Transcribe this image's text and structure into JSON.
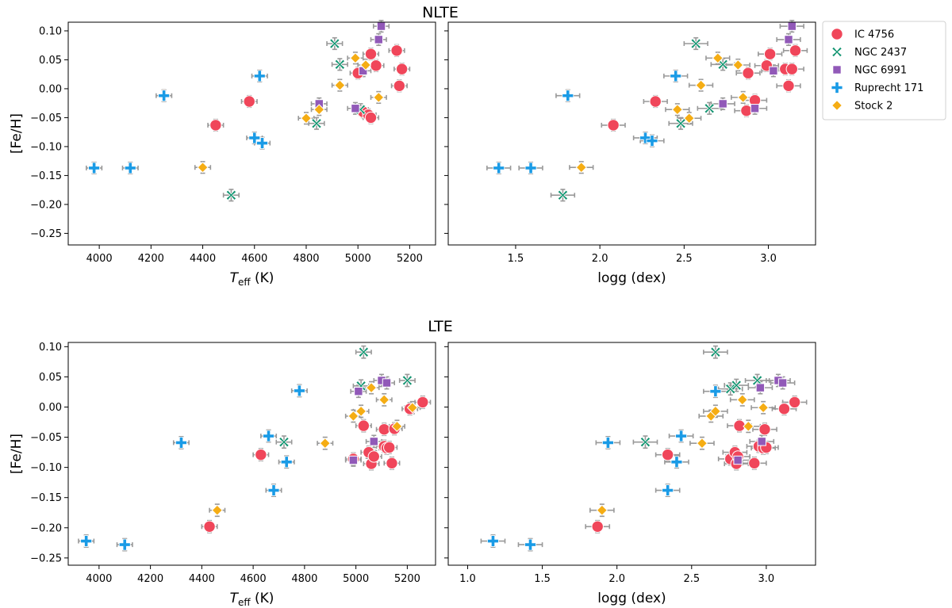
{
  "sections": [
    {
      "title": "NLTE"
    },
    {
      "title": "LTE"
    }
  ],
  "series_styles": [
    {
      "name": "IC 4756",
      "color": "#f0465a",
      "marker": "circle"
    },
    {
      "name": "NGC 2437",
      "color": "#119470",
      "marker": "x"
    },
    {
      "name": "NGC 6991",
      "color": "#9159b8",
      "marker": "square"
    },
    {
      "name": "Ruprecht 171",
      "color": "#1a9be6",
      "marker": "plus"
    },
    {
      "name": "Stock 2",
      "color": "#f5ad14",
      "marker": "diamond"
    }
  ],
  "error_bar_color": "#999999",
  "chart_data": [
    {
      "type": "scatter",
      "panel": "NLTE-teff",
      "title": "NLTE",
      "xlabel": "T_eff (K)",
      "ylabel": "[Fe/H]",
      "xlim": [
        3880,
        5300
      ],
      "ylim": [
        -0.27,
        0.115
      ],
      "xticks": [
        4000,
        4200,
        4400,
        4600,
        4800,
        5000,
        5200
      ],
      "yticks": [
        -0.25,
        -0.2,
        -0.15,
        -0.1,
        -0.05,
        0.0,
        0.05,
        0.1
      ],
      "xerr": 30,
      "yerr": 0.01,
      "series": [
        {
          "name": "IC 4756",
          "x": [
            4450,
            4580,
            5000,
            5020,
            5040,
            5050,
            5050,
            5070,
            5150,
            5160,
            5170
          ],
          "y": [
            -0.063,
            -0.022,
            0.027,
            -0.04,
            -0.045,
            -0.05,
            0.06,
            0.04,
            0.066,
            0.005,
            0.034
          ]
        },
        {
          "name": "NGC 2437",
          "x": [
            4510,
            4840,
            4910,
            4930,
            5010
          ],
          "y": [
            -0.184,
            -0.06,
            0.078,
            0.042,
            -0.036
          ]
        },
        {
          "name": "NGC 6991",
          "x": [
            4850,
            4990,
            5020,
            5080,
            5090
          ],
          "y": [
            -0.026,
            -0.034,
            0.031,
            0.085,
            0.108
          ]
        },
        {
          "name": "Ruprecht 171",
          "x": [
            3980,
            4120,
            4250,
            4600,
            4620,
            4630
          ],
          "y": [
            -0.137,
            -0.137,
            -0.012,
            -0.085,
            0.022,
            -0.094
          ]
        },
        {
          "name": "Stock 2",
          "x": [
            4400,
            4800,
            4850,
            4930,
            4990,
            5030,
            5080
          ],
          "y": [
            -0.136,
            -0.051,
            -0.036,
            0.006,
            0.053,
            0.041,
            -0.015
          ]
        }
      ]
    },
    {
      "type": "scatter",
      "panel": "NLTE-logg",
      "title": "NLTE",
      "xlabel": "logg (dex)",
      "ylabel": "",
      "xlim": [
        1.1,
        3.28
      ],
      "ylim": [
        -0.27,
        0.115
      ],
      "xticks": [
        1.5,
        2.0,
        2.5,
        3.0
      ],
      "yticks": [
        -0.25,
        -0.2,
        -0.15,
        -0.1,
        -0.05,
        0.0,
        0.05,
        0.1
      ],
      "xerr": 0.07,
      "yerr": 0.01,
      "series": [
        {
          "name": "IC 4756",
          "x": [
            2.08,
            2.33,
            2.87,
            2.92,
            2.88,
            2.99,
            3.01,
            3.1,
            3.14,
            3.16,
            3.12
          ],
          "y": [
            -0.063,
            -0.022,
            -0.038,
            -0.02,
            0.027,
            0.04,
            0.06,
            0.034,
            0.034,
            0.066,
            0.005
          ]
        },
        {
          "name": "NGC 2437",
          "x": [
            1.78,
            2.48,
            2.65,
            2.57,
            2.73
          ],
          "y": [
            -0.184,
            -0.06,
            -0.034,
            0.078,
            0.042
          ]
        },
        {
          "name": "NGC 6991",
          "x": [
            2.73,
            2.92,
            3.03,
            3.12,
            3.14
          ],
          "y": [
            -0.026,
            -0.034,
            0.031,
            0.085,
            0.108
          ]
        },
        {
          "name": "Ruprecht 171",
          "x": [
            1.4,
            1.59,
            1.81,
            2.27,
            2.31,
            2.45
          ],
          "y": [
            -0.137,
            -0.137,
            -0.012,
            -0.085,
            -0.09,
            0.022
          ]
        },
        {
          "name": "Stock 2",
          "x": [
            1.89,
            2.46,
            2.53,
            2.6,
            2.7,
            2.82,
            2.85
          ],
          "y": [
            -0.136,
            -0.036,
            -0.051,
            0.006,
            0.053,
            0.041,
            -0.015
          ]
        }
      ]
    },
    {
      "type": "scatter",
      "panel": "LTE-teff",
      "title": "LTE",
      "xlabel": "T_eff (K)",
      "ylabel": "[Fe/H]",
      "xlim": [
        3880,
        5310
      ],
      "ylim": [
        -0.262,
        0.107
      ],
      "xticks": [
        4000,
        4200,
        4400,
        4600,
        4800,
        5000,
        5200
      ],
      "yticks": [
        -0.25,
        -0.2,
        -0.15,
        -0.1,
        -0.05,
        0.0,
        0.05,
        0.1
      ],
      "xerr": 30,
      "yerr": 0.01,
      "series": [
        {
          "name": "IC 4756",
          "x": [
            4430,
            4630,
            4990,
            5030,
            5050,
            5060,
            5070,
            5110,
            5110,
            5120,
            5130,
            5140,
            5150,
            5210,
            5260
          ],
          "y": [
            -0.198,
            -0.079,
            -0.086,
            -0.031,
            -0.075,
            -0.094,
            -0.082,
            -0.065,
            -0.037,
            -0.068,
            -0.067,
            -0.093,
            -0.036,
            -0.003,
            0.008
          ]
        },
        {
          "name": "NGC 2437",
          "x": [
            4720,
            5020,
            5030,
            5200
          ],
          "y": [
            -0.058,
            0.035,
            0.091,
            0.044
          ]
        },
        {
          "name": "NGC 6991",
          "x": [
            4990,
            5010,
            5070,
            5100,
            5120
          ],
          "y": [
            -0.088,
            0.026,
            -0.057,
            0.044,
            0.04
          ]
        },
        {
          "name": "Ruprecht 171",
          "x": [
            3950,
            4100,
            4320,
            4660,
            4680,
            4730,
            4780
          ],
          "y": [
            -0.222,
            -0.228,
            -0.059,
            -0.048,
            -0.138,
            -0.091,
            0.027
          ]
        },
        {
          "name": "Stock 2",
          "x": [
            4460,
            4880,
            4990,
            5020,
            5060,
            5110,
            5160,
            5220
          ],
          "y": [
            -0.171,
            -0.06,
            -0.015,
            -0.007,
            0.032,
            0.012,
            -0.032,
            -0.001
          ]
        }
      ]
    },
    {
      "type": "scatter",
      "panel": "LTE-logg",
      "title": "LTE",
      "xlabel": "logg (dex)",
      "ylabel": "",
      "xlim": [
        0.87,
        3.33
      ],
      "ylim": [
        -0.262,
        0.107
      ],
      "xticks": [
        1.0,
        1.5,
        2.0,
        2.5,
        3.0
      ],
      "yticks": [
        -0.25,
        -0.2,
        -0.15,
        -0.1,
        -0.05,
        0.0,
        0.05,
        0.1
      ],
      "xerr": 0.08,
      "yerr": 0.01,
      "series": [
        {
          "name": "IC 4756",
          "x": [
            1.87,
            2.34,
            2.76,
            2.79,
            2.8,
            2.81,
            2.82,
            2.92,
            2.95,
            2.98,
            3.0,
            2.99,
            3.12,
            3.19
          ],
          "y": [
            -0.198,
            -0.079,
            -0.086,
            -0.075,
            -0.094,
            -0.082,
            -0.031,
            -0.093,
            -0.065,
            -0.068,
            -0.067,
            -0.037,
            -0.003,
            0.008
          ]
        },
        {
          "name": "NGC 2437",
          "x": [
            2.19,
            2.66,
            2.76,
            2.8,
            2.94
          ],
          "y": [
            -0.058,
            0.091,
            0.03,
            0.036,
            0.044
          ]
        },
        {
          "name": "NGC 6991",
          "x": [
            2.81,
            2.97,
            2.96,
            3.08,
            3.11
          ],
          "y": [
            -0.088,
            -0.057,
            0.032,
            0.044,
            0.04
          ]
        },
        {
          "name": "Ruprecht 171",
          "x": [
            1.17,
            1.42,
            1.94,
            2.34,
            2.4,
            2.43,
            2.66
          ],
          "y": [
            -0.222,
            -0.228,
            -0.059,
            -0.138,
            -0.091,
            -0.048,
            0.026
          ]
        },
        {
          "name": "Stock 2",
          "x": [
            1.9,
            2.57,
            2.63,
            2.66,
            2.84,
            2.88,
            2.98
          ],
          "y": [
            -0.171,
            -0.06,
            -0.015,
            -0.007,
            0.012,
            -0.032,
            -0.001
          ]
        }
      ]
    }
  ]
}
